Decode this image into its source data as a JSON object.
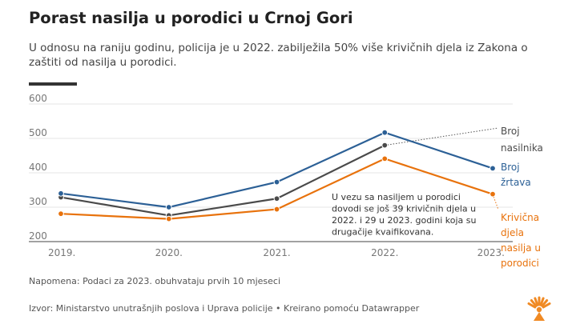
{
  "header": {
    "title": "Porast nasilja u porodici u Crnoj Gori",
    "subtitle": "U odnosu na raniju godinu, policija je u 2022. zabilježila 50% više krivičnih djela iz Zakona o zaštiti od nasilja u porodici."
  },
  "chart_data": {
    "type": "line",
    "categories": [
      "2019.",
      "2020.",
      "2021.",
      "2022.",
      "2023."
    ],
    "yticks": [
      200,
      300,
      400,
      500,
      600
    ],
    "ylim": [
      200,
      600
    ],
    "series": [
      {
        "name": "Broj nasilnika",
        "label_lines": [
          "Broj",
          "nasilnika"
        ],
        "color": "#4a4a4a",
        "values": [
          329,
          276,
          325,
          480,
          null
        ]
      },
      {
        "name": "Broj žrtava",
        "label_lines": [
          "Broj",
          "žrtava"
        ],
        "color": "#2c6096",
        "values": [
          340,
          300,
          373,
          517,
          413
        ]
      },
      {
        "name": "Krivična djela nasilja u porodici",
        "label_lines": [
          "Krivična",
          "djela",
          "nasilja u",
          "porodici"
        ],
        "color": "#e8720c",
        "values": [
          281,
          266,
          294,
          441,
          338
        ]
      }
    ],
    "annotation_lines": [
      "U vezu sa nasiljem u porodici",
      "dovodi se još 39 krivičnih djela u",
      "2022. i 29 u 2023. godini koja su",
      "drugačije kvaifikovana."
    ]
  },
  "footer": {
    "note": "Napomena: Podaci za 2023. obuhvataju prvih 10 mjeseci",
    "source": "Izvor: Ministarstvo unutrašnjih poslova i Uprava policije • Kreirano pomoću Datawrapper"
  },
  "colors": {
    "logo": "#f08a24"
  }
}
